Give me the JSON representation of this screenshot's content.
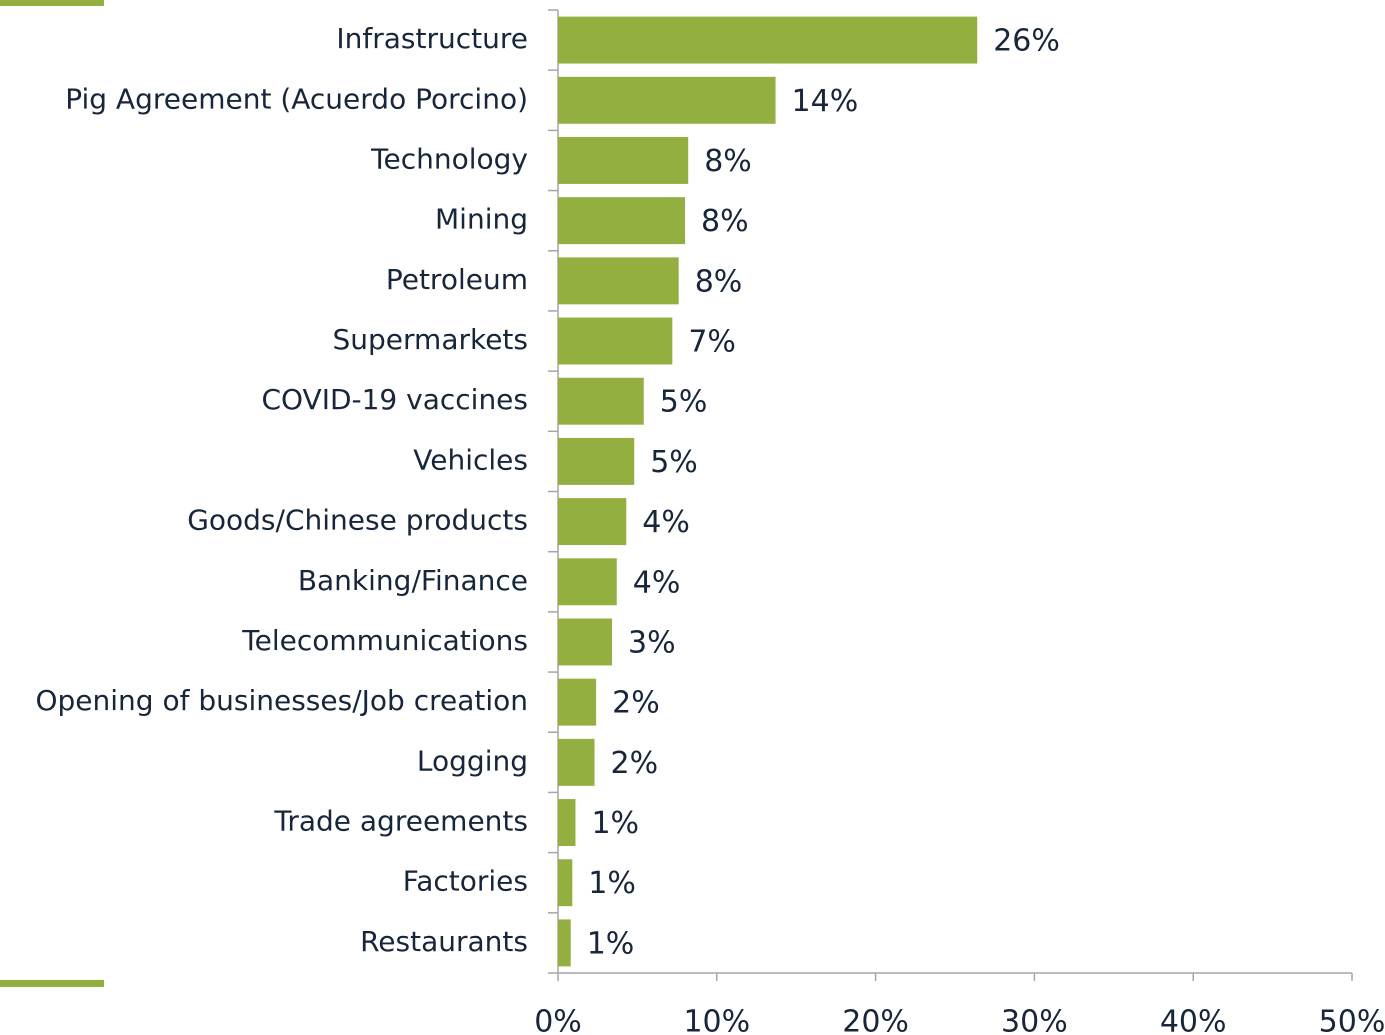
{
  "chart_data": {
    "type": "bar",
    "orientation": "horizontal",
    "categories": [
      "Infrastructure",
      "Pig Agreement (Acuerdo Porcino)",
      "Technology",
      "Mining",
      "Petroleum",
      "Supermarkets",
      "COVID-19 vaccines",
      "Vehicles",
      "Goods/Chinese products",
      "Banking/Finance",
      "Telecommunications",
      "Opening of businesses/Job creation",
      "Logging",
      "Trade agreements",
      "Factories",
      "Restaurants"
    ],
    "values": [
      26.4,
      13.7,
      8.2,
      8.0,
      7.6,
      7.2,
      5.4,
      4.8,
      4.3,
      3.7,
      3.4,
      2.4,
      2.3,
      1.1,
      0.9,
      0.8
    ],
    "value_labels": [
      "26%",
      "14%",
      "8%",
      "8%",
      "8%",
      "7%",
      "5%",
      "5%",
      "4%",
      "4%",
      "3%",
      "2%",
      "2%",
      "1%",
      "1%",
      "1%"
    ],
    "color": "#92af3f",
    "xlim": [
      0,
      50
    ],
    "xticks": [
      {
        "value": 0,
        "label": "0%"
      },
      {
        "value": 10,
        "label": "10%"
      },
      {
        "value": 20,
        "label": "20%"
      },
      {
        "value": 30,
        "label": "30%"
      },
      {
        "value": 40,
        "label": "40%"
      },
      {
        "value": 50,
        "label": "50%"
      }
    ]
  }
}
